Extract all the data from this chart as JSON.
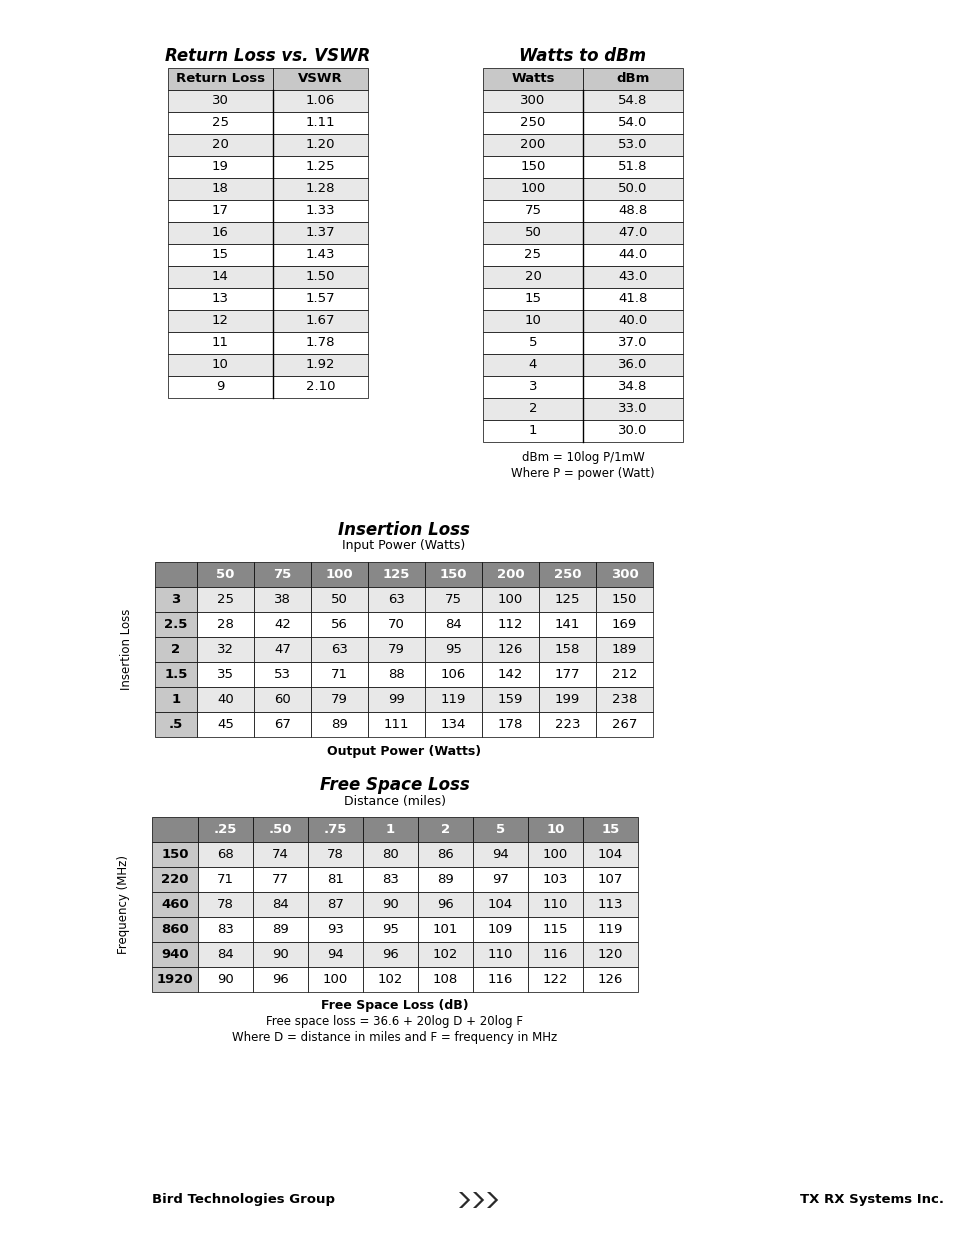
{
  "title1": "Return Loss vs. VSWR",
  "title2": "Watts to dBm",
  "title3": "Insertion Loss",
  "title4": "Free Space Loss",
  "rl_vswr_header": [
    "Return Loss",
    "VSWR"
  ],
  "rl_vswr_data": [
    [
      "30",
      "1.06"
    ],
    [
      "25",
      "1.11"
    ],
    [
      "20",
      "1.20"
    ],
    [
      "19",
      "1.25"
    ],
    [
      "18",
      "1.28"
    ],
    [
      "17",
      "1.33"
    ],
    [
      "16",
      "1.37"
    ],
    [
      "15",
      "1.43"
    ],
    [
      "14",
      "1.50"
    ],
    [
      "13",
      "1.57"
    ],
    [
      "12",
      "1.67"
    ],
    [
      "11",
      "1.78"
    ],
    [
      "10",
      "1.92"
    ],
    [
      "9",
      "2.10"
    ]
  ],
  "watts_dbm_header": [
    "Watts",
    "dBm"
  ],
  "watts_dbm_data": [
    [
      "300",
      "54.8"
    ],
    [
      "250",
      "54.0"
    ],
    [
      "200",
      "53.0"
    ],
    [
      "150",
      "51.8"
    ],
    [
      "100",
      "50.0"
    ],
    [
      "75",
      "48.8"
    ],
    [
      "50",
      "47.0"
    ],
    [
      "25",
      "44.0"
    ],
    [
      "20",
      "43.0"
    ],
    [
      "15",
      "41.8"
    ],
    [
      "10",
      "40.0"
    ],
    [
      "5",
      "37.0"
    ],
    [
      "4",
      "36.0"
    ],
    [
      "3",
      "34.8"
    ],
    [
      "2",
      "33.0"
    ],
    [
      "1",
      "30.0"
    ]
  ],
  "watts_dbm_note1": "dBm = 10log P/1mW",
  "watts_dbm_note2": "Where P = power (Watt)",
  "il_subtitle1": "Input Power (Watts)",
  "il_subtitle2": "Output Power (Watts)",
  "il_ylabel": "Insertion Loss",
  "il_col_headers": [
    "",
    "50",
    "75",
    "100",
    "125",
    "150",
    "200",
    "250",
    "300"
  ],
  "il_row_headers": [
    "3",
    "2.5",
    "2",
    "1.5",
    "1",
    ".5"
  ],
  "il_data": [
    [
      "25",
      "38",
      "50",
      "63",
      "75",
      "100",
      "125",
      "150"
    ],
    [
      "28",
      "42",
      "56",
      "70",
      "84",
      "112",
      "141",
      "169"
    ],
    [
      "32",
      "47",
      "63",
      "79",
      "95",
      "126",
      "158",
      "189"
    ],
    [
      "35",
      "53",
      "71",
      "88",
      "106",
      "142",
      "177",
      "212"
    ],
    [
      "40",
      "60",
      "79",
      "99",
      "119",
      "159",
      "199",
      "238"
    ],
    [
      "45",
      "67",
      "89",
      "111",
      "134",
      "178",
      "223",
      "267"
    ]
  ],
  "fsl_subtitle1": "Distance (miles)",
  "fsl_subtitle2": "Free Space Loss (dB)",
  "fsl_ylabel": "Frequency (MHz)",
  "fsl_col_headers": [
    "",
    ".25",
    ".50",
    ".75",
    "1",
    "2",
    "5",
    "10",
    "15"
  ],
  "fsl_row_headers": [
    "150",
    "220",
    "460",
    "860",
    "940",
    "1920"
  ],
  "fsl_data": [
    [
      "68",
      "74",
      "78",
      "80",
      "86",
      "94",
      "100",
      "104"
    ],
    [
      "71",
      "77",
      "81",
      "83",
      "89",
      "97",
      "103",
      "107"
    ],
    [
      "78",
      "84",
      "87",
      "90",
      "96",
      "104",
      "110",
      "113"
    ],
    [
      "83",
      "89",
      "93",
      "95",
      "101",
      "109",
      "115",
      "119"
    ],
    [
      "84",
      "90",
      "94",
      "96",
      "102",
      "110",
      "116",
      "120"
    ],
    [
      "90",
      "96",
      "100",
      "102",
      "108",
      "116",
      "122",
      "126"
    ]
  ],
  "fsl_note1": "Free space loss = 36.6 + 20log D + 20log F",
  "fsl_note2": "Where D = distance in miles and F = frequency in MHz",
  "footer_left": "Bird Technologies Group",
  "footer_right": "TX RX Systems Inc.",
  "header_bg": "#c8c8c8",
  "row_even_bg": "#ffffff",
  "row_odd_bg": "#e8e8e8",
  "dark_header_bg": "#888888"
}
